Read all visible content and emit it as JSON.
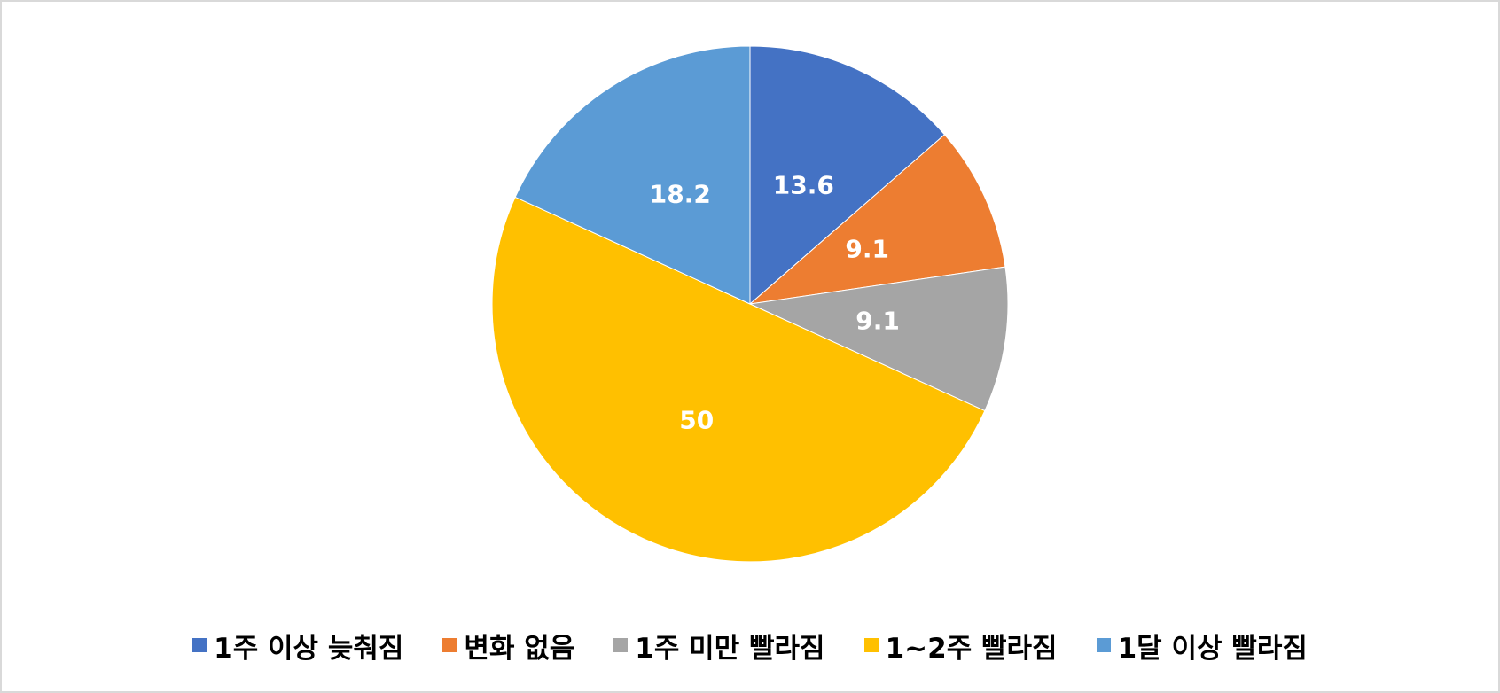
{
  "chart_data": {
    "type": "pie",
    "categories": [
      "1주 이상 늦춰짐",
      "변화 없음",
      "1주 미만 빨라짐",
      "1~2주 빨라짐",
      "1달 이상 빨라짐"
    ],
    "values": [
      13.6,
      9.1,
      9.1,
      50,
      18.2
    ],
    "colors": [
      "#4472c4",
      "#ed7d31",
      "#a5a5a5",
      "#ffc000",
      "#5b9bd5"
    ],
    "legend": "bottom"
  }
}
